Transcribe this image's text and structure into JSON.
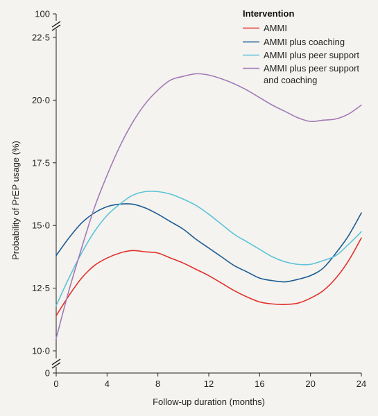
{
  "chart_data": {
    "type": "line",
    "xlabel": "Follow-up duration (months)",
    "ylabel": "Probability of PrEP usage (%)",
    "x_ticks": [
      0,
      4,
      8,
      12,
      16,
      20,
      24
    ],
    "y_ticks": [
      {
        "value": 10.0,
        "label": "10·0"
      },
      {
        "value": 12.5,
        "label": "12·5"
      },
      {
        "value": 15.0,
        "label": "15·0"
      },
      {
        "value": 17.5,
        "label": "17·5"
      },
      {
        "value": 20.0,
        "label": "20·0"
      },
      {
        "value": 22.5,
        "label": "22·5"
      }
    ],
    "y_break_labels": {
      "top": "100",
      "bottom": "0"
    },
    "xlim": [
      0,
      24
    ],
    "ylim": [
      10,
      22.5
    ],
    "y_axis_break": true,
    "grid": false,
    "legend": {
      "title": "Intervention",
      "placement": "top-right"
    },
    "x": [
      0,
      1,
      2,
      3,
      4,
      5,
      6,
      7,
      8,
      9,
      10,
      11,
      12,
      13,
      14,
      15,
      16,
      17,
      18,
      19,
      20,
      21,
      22,
      23,
      24
    ],
    "series": [
      {
        "name": "AMMI",
        "color": "#e2302b",
        "values": [
          11.4,
          12.2,
          12.9,
          13.4,
          13.7,
          13.9,
          14.0,
          13.95,
          13.9,
          13.7,
          13.5,
          13.25,
          13.0,
          12.7,
          12.4,
          12.15,
          11.95,
          11.87,
          11.85,
          11.9,
          12.1,
          12.4,
          12.9,
          13.6,
          14.5
        ]
      },
      {
        "name": "AMMI plus coaching",
        "color": "#1c5b92",
        "values": [
          13.8,
          14.5,
          15.1,
          15.5,
          15.75,
          15.85,
          15.85,
          15.7,
          15.45,
          15.15,
          14.85,
          14.45,
          14.1,
          13.75,
          13.4,
          13.15,
          12.9,
          12.8,
          12.75,
          12.85,
          13.0,
          13.3,
          13.9,
          14.6,
          15.5
        ]
      },
      {
        "name": "AMMI plus peer support",
        "color": "#5cc3d8",
        "values": [
          11.8,
          12.9,
          13.9,
          14.75,
          15.4,
          15.85,
          16.2,
          16.35,
          16.35,
          16.25,
          16.05,
          15.8,
          15.45,
          15.05,
          14.65,
          14.35,
          14.05,
          13.75,
          13.55,
          13.45,
          13.45,
          13.6,
          13.8,
          14.25,
          14.75
        ]
      },
      {
        "name": "AMMI plus peer support and coaching",
        "color": "#a279b6",
        "values": [
          10.5,
          12.4,
          14.1,
          15.7,
          17.0,
          18.15,
          19.1,
          19.85,
          20.4,
          20.8,
          20.95,
          21.05,
          21.0,
          20.85,
          20.65,
          20.4,
          20.1,
          19.8,
          19.55,
          19.3,
          19.15,
          19.2,
          19.25,
          19.45,
          19.8
        ]
      }
    ]
  }
}
